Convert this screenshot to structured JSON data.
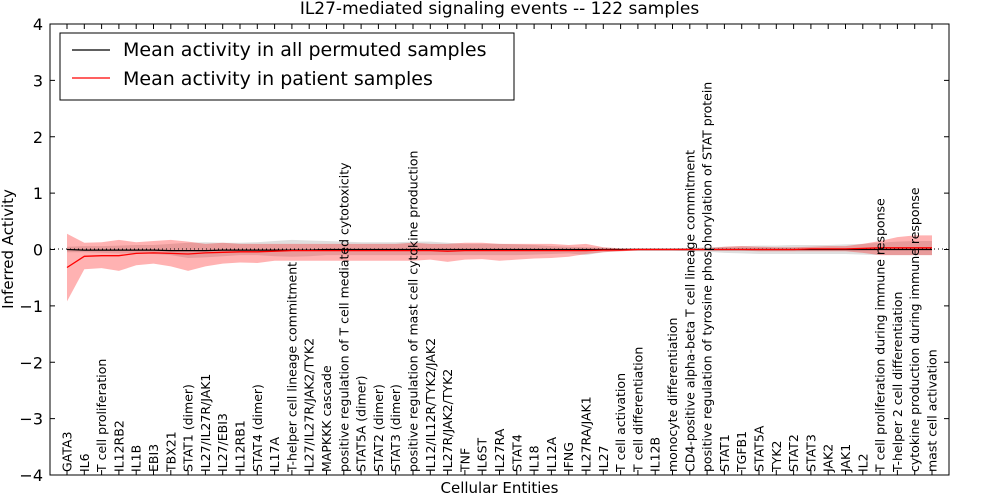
{
  "chart_data": {
    "type": "line",
    "title": "IL27-mediated signaling events -- 122 samples",
    "xlabel": "Cellular Entities",
    "ylabel": "Inferred Activity",
    "ylim": [
      -4,
      4
    ],
    "yticks": [
      -4,
      -3,
      -2,
      -1,
      0,
      1,
      2,
      3,
      4
    ],
    "yticklabels": [
      "−4",
      "−3",
      "−2",
      "−1",
      "0",
      "1",
      "2",
      "3",
      "4"
    ],
    "grid": false,
    "legend_position": "top-left",
    "categories": [
      "GATA3",
      "IL6",
      "T cell proliferation",
      "IL12RB2",
      "IL1B",
      "EBI3",
      "TBX21",
      "STAT1 (dimer)",
      "IL27/IL27R/JAK1",
      "IL27/EBI3",
      "IL12RB1",
      "STAT4 (dimer)",
      "IL17A",
      "T-helper cell lineage commitment",
      "IL27/IL27R/JAK2/TYK2",
      "MAPKKK cascade",
      "positive regulation of T cell mediated cytotoxicity",
      "STAT5A (dimer)",
      "STAT2 (dimer)",
      "STAT3 (dimer)",
      "positive regulation of mast cell cytokine production",
      "IL12/IL12R/TYK2/JAK2",
      "IL27R/JAK2/TYK2",
      "TNF",
      "IL6ST",
      "IL27RA",
      "STAT4",
      "IL18",
      "IL12A",
      "IFNG",
      "IL27RA/JAK1",
      "IL27",
      "T cell activation",
      "T cell differentiation",
      "IL12B",
      "monocyte differentiation",
      "CD4-positive alpha-beta T cell lineage commitment",
      "positive regulation of tyrosine phosphorylation of STAT protein",
      "STAT1",
      "TGFB1",
      "STAT5A",
      "TYK2",
      "STAT2",
      "STAT3",
      "JAK2",
      "JAK1",
      "IL2",
      "T cell proliferation during immune response",
      "T-helper 2 cell differentiation",
      "cytokine production during immune response",
      "mast cell activation"
    ],
    "series": [
      {
        "name": "Mean activity in all permuted samples",
        "color": "#000000",
        "values": [
          0.0,
          -0.01,
          -0.01,
          -0.01,
          -0.01,
          -0.01,
          -0.02,
          -0.02,
          -0.02,
          -0.01,
          -0.01,
          -0.01,
          -0.01,
          -0.01,
          -0.01,
          0.0,
          0.0,
          0.0,
          0.0,
          0.0,
          0.0,
          0.0,
          0.0,
          0.0,
          0.0,
          0.0,
          0.0,
          0.0,
          0.0,
          0.0,
          0.0,
          0.0,
          0.0,
          0.0,
          0.0,
          0.0,
          0.0,
          0.0,
          0.0,
          0.0,
          0.0,
          0.0,
          0.0,
          0.0,
          0.0,
          0.0,
          0.0,
          0.0,
          0.0,
          0.0,
          0.0
        ],
        "lower": [
          -0.05,
          -0.05,
          -0.06,
          -0.07,
          -0.07,
          -0.08,
          -0.1,
          -0.15,
          -0.14,
          -0.12,
          -0.1,
          -0.1,
          -0.12,
          -0.13,
          -0.12,
          -0.1,
          -0.1,
          -0.1,
          -0.1,
          -0.1,
          -0.1,
          -0.1,
          -0.1,
          -0.1,
          -0.1,
          -0.1,
          -0.1,
          -0.09,
          -0.08,
          -0.07,
          -0.1,
          -0.05,
          -0.03,
          -0.02,
          -0.02,
          -0.02,
          -0.03,
          -0.04,
          -0.06,
          -0.07,
          -0.08,
          -0.08,
          -0.08,
          -0.08,
          -0.08,
          -0.08,
          -0.09,
          -0.1,
          -0.1,
          -0.1,
          -0.1
        ],
        "upper": [
          0.05,
          0.06,
          0.06,
          0.07,
          0.08,
          0.08,
          0.1,
          0.12,
          0.13,
          0.12,
          0.12,
          0.13,
          0.15,
          0.17,
          0.16,
          0.15,
          0.14,
          0.13,
          0.13,
          0.13,
          0.14,
          0.14,
          0.12,
          0.1,
          0.1,
          0.1,
          0.09,
          0.08,
          0.06,
          0.05,
          0.04,
          0.03,
          0.02,
          0.02,
          0.02,
          0.02,
          0.03,
          0.04,
          0.05,
          0.06,
          0.07,
          0.07,
          0.08,
          0.08,
          0.08,
          0.09,
          0.1,
          0.12,
          0.14,
          0.15,
          0.15
        ]
      },
      {
        "name": "Mean activity in patient samples",
        "color": "#ff0000",
        "values": [
          -0.32,
          -0.12,
          -0.11,
          -0.11,
          -0.07,
          -0.06,
          -0.07,
          -0.08,
          -0.06,
          -0.05,
          -0.04,
          -0.04,
          -0.03,
          -0.02,
          -0.02,
          -0.02,
          -0.02,
          -0.02,
          -0.02,
          -0.02,
          -0.02,
          -0.02,
          -0.03,
          -0.02,
          -0.02,
          -0.02,
          -0.02,
          -0.02,
          -0.02,
          -0.02,
          -0.02,
          -0.01,
          -0.01,
          0.0,
          0.0,
          0.0,
          0.0,
          0.0,
          0.0,
          0.0,
          0.0,
          0.0,
          0.0,
          0.01,
          0.01,
          0.01,
          0.02,
          0.03,
          0.03,
          0.03,
          0.03
        ],
        "lower": [
          -0.92,
          -0.35,
          -0.33,
          -0.38,
          -0.28,
          -0.25,
          -0.3,
          -0.38,
          -0.3,
          -0.25,
          -0.23,
          -0.24,
          -0.2,
          -0.2,
          -0.2,
          -0.2,
          -0.2,
          -0.2,
          -0.2,
          -0.2,
          -0.2,
          -0.18,
          -0.22,
          -0.18,
          -0.17,
          -0.2,
          -0.18,
          -0.16,
          -0.15,
          -0.13,
          -0.08,
          -0.05,
          -0.03,
          -0.02,
          -0.02,
          -0.02,
          -0.02,
          -0.02,
          -0.02,
          -0.02,
          -0.03,
          -0.03,
          -0.03,
          -0.03,
          -0.03,
          -0.03,
          -0.06,
          -0.1,
          -0.1,
          -0.1,
          -0.1
        ],
        "upper": [
          0.28,
          0.12,
          0.13,
          0.17,
          0.13,
          0.15,
          0.17,
          0.14,
          0.1,
          0.12,
          0.1,
          0.1,
          0.1,
          0.1,
          0.1,
          0.1,
          0.1,
          0.1,
          0.1,
          0.1,
          0.12,
          0.1,
          0.1,
          0.12,
          0.12,
          0.1,
          0.1,
          0.1,
          0.1,
          0.08,
          0.1,
          0.04,
          0.02,
          0.02,
          0.02,
          0.02,
          0.02,
          0.02,
          0.05,
          0.06,
          0.05,
          0.04,
          0.04,
          0.05,
          0.06,
          0.06,
          0.1,
          0.15,
          0.22,
          0.25,
          0.25
        ]
      }
    ]
  }
}
